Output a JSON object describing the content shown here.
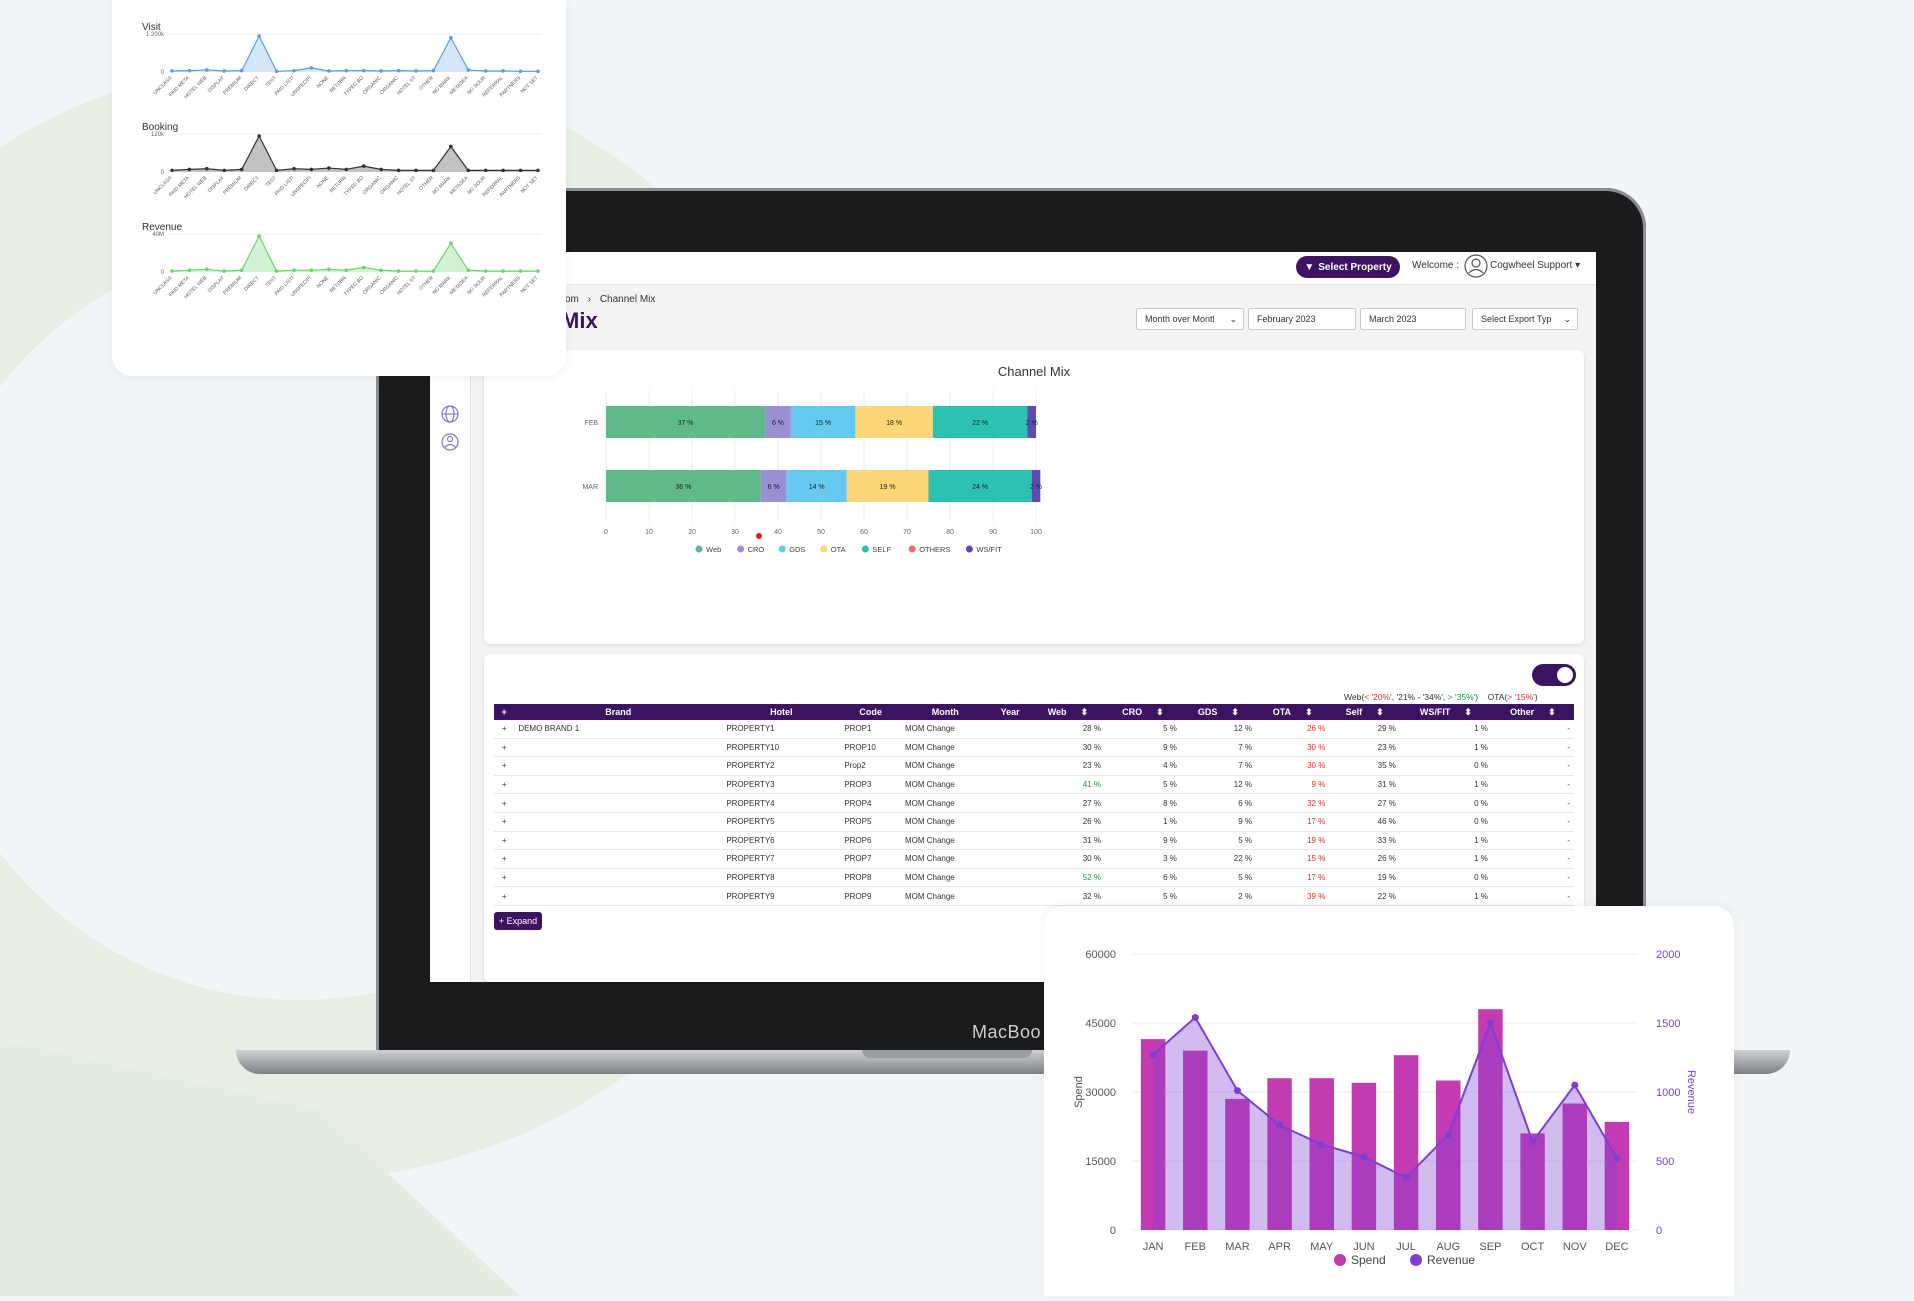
{
  "colors": {
    "brand": "#3b1361",
    "web": "#5fb98b",
    "cro": "#9a8fd2",
    "gds": "#66c9f0",
    "ota": "#fbd776",
    "self": "#2bc1b3",
    "others": "#ef6d6d",
    "wsfit": "#5e4bb0",
    "spend": "#c33bb2",
    "revenue": "#7e3fd1",
    "visit": "#5b9ee6",
    "booking": "#333333",
    "revenue_spark": "#6ed36e"
  },
  "laptop": {
    "brand": "MacBoo"
  },
  "topbar": {
    "select_property": "Select Property",
    "welcome": "Welcome :",
    "user": "Cogwheel Support"
  },
  "breadcrumb": {
    "prefix": "om",
    "sep": "›",
    "current": "Channel Mix"
  },
  "page_title": "Mix",
  "filters": {
    "period": "Month over Montl",
    "from": "February 2023",
    "to": "March 2023",
    "export": "Select Export Typ"
  },
  "sidebar": {
    "icons": [
      "globe-icon",
      "network-icon"
    ]
  },
  "chart_data": [
    {
      "type": "bar",
      "title": "Channel Mix",
      "orientation": "horizontal-stacked",
      "categories": [
        "FEB",
        "MAR"
      ],
      "series": [
        {
          "name": "Web",
          "values": [
            37,
            36
          ],
          "labels": [
            "37 %",
            "36 %"
          ]
        },
        {
          "name": "CRO",
          "values": [
            6,
            6
          ],
          "labels": [
            "6 %",
            "6 %"
          ]
        },
        {
          "name": "GDS",
          "values": [
            15,
            14
          ],
          "labels": [
            "15 %",
            "14 %"
          ]
        },
        {
          "name": "OTA",
          "values": [
            18,
            19
          ],
          "labels": [
            "18 %",
            "19 %"
          ]
        },
        {
          "name": "SELF",
          "values": [
            22,
            24
          ],
          "labels": [
            "22 %",
            "24 %"
          ]
        },
        {
          "name": "OTHERS",
          "values": [
            0,
            0
          ],
          "labels": [
            "",
            ""
          ]
        },
        {
          "name": "WS/FIT",
          "values": [
            2,
            2
          ],
          "labels": [
            "2 %",
            "2 %"
          ]
        }
      ],
      "xlim": [
        0,
        100
      ],
      "xticks": [
        "0",
        "10",
        "20",
        "30",
        "40",
        "50",
        "60",
        "70",
        "80",
        "90",
        "100"
      ],
      "legend": "bottom"
    },
    {
      "type": "bar",
      "categories": [
        "JAN",
        "FEB",
        "MAR",
        "APR",
        "MAY",
        "JUN",
        "JUL",
        "AUG",
        "SEP",
        "OCT",
        "NOV",
        "DEC"
      ],
      "series": [
        {
          "name": "Spend",
          "type": "bar",
          "axis": "left",
          "values": [
            41500,
            39000,
            28500,
            33000,
            33000,
            32000,
            38000,
            32500,
            48000,
            21000,
            27500,
            23500
          ]
        },
        {
          "name": "Revenue",
          "type": "area",
          "axis": "right",
          "values": [
            1270,
            1540,
            1010,
            760,
            620,
            530,
            380,
            690,
            1500,
            640,
            1050,
            520
          ]
        }
      ],
      "ylabel": "Spend",
      "y2label": "Revenue",
      "ylim": [
        0,
        60000
      ],
      "y2lim": [
        0,
        2000
      ],
      "yticks": [
        "0",
        "15000",
        "30000",
        "45000",
        "60000"
      ],
      "y2ticks": [
        "0",
        "500",
        "1000",
        "1500",
        "2000"
      ],
      "legend": "bottom"
    },
    {
      "type": "area",
      "title": "Visit",
      "ytop": "1 200k",
      "ybottom": "0",
      "categories": [
        "UNCLASS",
        "PAID META",
        "HOTEL WEB",
        "DISPLAY",
        "PREMIUM",
        "DIRECT",
        "TEST",
        "PAID LISTI",
        "UNSPECIFI",
        "NONE",
        "RETURN",
        "TYPED BO",
        "ORGANIC",
        "ORGANIC",
        "HOTEL ST",
        "OTHER",
        "NO MARK",
        "METASEA",
        "NO SOUR",
        "REFERRAL",
        "PARTNERS",
        "NOT SET"
      ],
      "values": [
        30,
        40,
        60,
        30,
        40,
        1050,
        20,
        40,
        120,
        30,
        40,
        40,
        30,
        40,
        30,
        40,
        1000,
        60,
        30,
        30,
        20,
        20
      ]
    },
    {
      "type": "area",
      "title": "Booking",
      "ytop": "120k",
      "ybottom": "0",
      "categories": [
        "UNCLASS",
        "PAID META",
        "HOTEL WEB",
        "DISPLAY",
        "PREMIUM",
        "DIRECT",
        "TEST",
        "PAID LISTI",
        "UNSPECIFI",
        "NONE",
        "RETURN",
        "TYPED BO",
        "ORGANIC",
        "ORGANIC",
        "HOTEL ST",
        "OTHER",
        "NO MARK",
        "METASEA",
        "NO SOUR",
        "REFERRAL",
        "PARTNERS",
        "NOT SET"
      ],
      "values": [
        5,
        8,
        10,
        5,
        8,
        110,
        5,
        10,
        8,
        12,
        8,
        18,
        8,
        5,
        5,
        5,
        78,
        5,
        5,
        5,
        5,
        5
      ]
    },
    {
      "type": "area",
      "title": "Revenue",
      "ytop": "40M",
      "ybottom": "0",
      "categories": [
        "UNCLASS",
        "PAID META",
        "HOTEL WEB",
        "DISPLAY",
        "PREMIUM",
        "DIRECT",
        "TEST",
        "PAID LISTI",
        "UNSPECIFI",
        "NONE",
        "RETURN",
        "TYPED BO",
        "ORGANIC",
        "ORGANIC",
        "HOTEL ST",
        "OTHER",
        "NO MARK",
        "METASEA",
        "NO SOUR",
        "REFERRAL",
        "PARTNERS",
        "NOT SET"
      ],
      "values": [
        1,
        2,
        3,
        1,
        2,
        40,
        1,
        2,
        2,
        3,
        2,
        5,
        2,
        1,
        1,
        1,
        32,
        2,
        1,
        1,
        1,
        1
      ]
    }
  ],
  "table": {
    "legend": {
      "web_prefix": "Web(",
      "web_low": "< '20%'",
      "web_mid": ", '21% - '34%',",
      "web_high": "> '35%'",
      "web_suffix": ")",
      "ota_prefix": "OTA(",
      "ota_high": "> '15%'",
      "ota_suffix": ")"
    },
    "columns": [
      "+",
      "Brand",
      "Hotel",
      "Code",
      "Month",
      "Year",
      "Web",
      "CRO",
      "GDS",
      "OTA",
      "Self",
      "WS/FIT",
      "Other"
    ],
    "sort_icon": "⬍",
    "rows": [
      {
        "expand": "+",
        "brand": "DEMO BRAND 1",
        "hotel": "PROPERTY1",
        "code": "PROP1",
        "month": "MOM Change",
        "web": "28 %",
        "cro": "5 %",
        "gds": "12 %",
        "ota": "26 %",
        "self": "29 %",
        "wsfit": "1 %",
        "other": "-",
        "web_cls": "",
        "ota_cls": "red"
      },
      {
        "expand": "+",
        "brand": "",
        "hotel": "PROPERTY10",
        "code": "PROP10",
        "month": "MOM Change",
        "web": "30 %",
        "cro": "9 %",
        "gds": "7 %",
        "ota": "30 %",
        "self": "23 %",
        "wsfit": "1 %",
        "other": "-",
        "web_cls": "",
        "ota_cls": "red"
      },
      {
        "expand": "+",
        "brand": "",
        "hotel": "PROPERTY2",
        "code": "Prop2",
        "month": "MOM Change",
        "web": "23 %",
        "cro": "4 %",
        "gds": "7 %",
        "ota": "30 %",
        "self": "35 %",
        "wsfit": "0 %",
        "other": "-",
        "web_cls": "",
        "ota_cls": "red"
      },
      {
        "expand": "+",
        "brand": "",
        "hotel": "PROPERTY3",
        "code": "PROP3",
        "month": "MOM Change",
        "web": "41 %",
        "cro": "5 %",
        "gds": "12 %",
        "ota": "9 %",
        "self": "31 %",
        "wsfit": "1 %",
        "other": "-",
        "web_cls": "green",
        "ota_cls": "red"
      },
      {
        "expand": "+",
        "brand": "",
        "hotel": "PROPERTY4",
        "code": "PROP4",
        "month": "MOM Change",
        "web": "27 %",
        "cro": "8 %",
        "gds": "6 %",
        "ota": "32 %",
        "self": "27 %",
        "wsfit": "0 %",
        "other": "-",
        "web_cls": "",
        "ota_cls": "red"
      },
      {
        "expand": "+",
        "brand": "",
        "hotel": "PROPERTY5",
        "code": "PROP5",
        "month": "MOM Change",
        "web": "26 %",
        "cro": "1 %",
        "gds": "9 %",
        "ota": "17 %",
        "self": "46 %",
        "wsfit": "0 %",
        "other": "-",
        "web_cls": "",
        "ota_cls": "red"
      },
      {
        "expand": "+",
        "brand": "",
        "hotel": "PROPERTY6",
        "code": "PROP6",
        "month": "MOM Change",
        "web": "31 %",
        "cro": "9 %",
        "gds": "5 %",
        "ota": "19 %",
        "self": "33 %",
        "wsfit": "1 %",
        "other": "-",
        "web_cls": "",
        "ota_cls": "red"
      },
      {
        "expand": "+",
        "brand": "",
        "hotel": "PROPERTY7",
        "code": "PROP7",
        "month": "MOM Change",
        "web": "30 %",
        "cro": "3 %",
        "gds": "22 %",
        "ota": "15 %",
        "self": "26 %",
        "wsfit": "1 %",
        "other": "-",
        "web_cls": "",
        "ota_cls": "red"
      },
      {
        "expand": "+",
        "brand": "",
        "hotel": "PROPERTY8",
        "code": "PROP8",
        "month": "MOM Change",
        "web": "52 %",
        "cro": "6 %",
        "gds": "5 %",
        "ota": "17 %",
        "self": "19 %",
        "wsfit": "0 %",
        "other": "-",
        "web_cls": "green",
        "ota_cls": "red"
      },
      {
        "expand": "+",
        "brand": "",
        "hotel": "PROPERTY9",
        "code": "PROP9",
        "month": "MOM Change",
        "web": "32 %",
        "cro": "5 %",
        "gds": "2 %",
        "ota": "39 %",
        "self": "22 %",
        "wsfit": "1 %",
        "other": "-",
        "web_cls": "",
        "ota_cls": "red"
      }
    ],
    "expand_button": "+ Expand"
  }
}
